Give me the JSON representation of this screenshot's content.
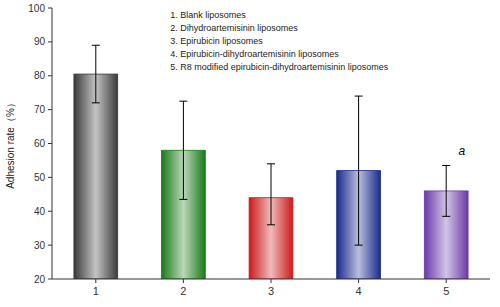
{
  "chart_data": {
    "type": "bar",
    "categories": [
      "1",
      "2",
      "3",
      "4",
      "5"
    ],
    "values": [
      80.5,
      58.0,
      44.0,
      52.0,
      46.0
    ],
    "errors_upper": [
      8.5,
      14.5,
      10.0,
      22.0,
      7.5
    ],
    "errors_lower": [
      8.5,
      14.5,
      8.0,
      22.0,
      7.5
    ],
    "colors": [
      "#3a3a3a",
      "#1a7a1a",
      "#cc1a1a",
      "#1a2a8c",
      "#6a3aaa"
    ],
    "ylabel": "Adhesion rate（%）",
    "ylim": [
      20,
      100
    ],
    "yticks": [
      20,
      30,
      40,
      50,
      60,
      70,
      80,
      90,
      100
    ],
    "grid": false,
    "annotations": [
      {
        "text": "a",
        "x": 4.18,
        "y": 56.5
      }
    ],
    "legend_text": [
      "1. Blank liposomes",
      "2. Dihydroartemisinin liposomes",
      "3. Epirubicin liposomes",
      "4. Epirubicin-dihydroartemisinin liposomes",
      "5. R8 modified epirubicin-dihydroartemisinin liposomes"
    ]
  }
}
